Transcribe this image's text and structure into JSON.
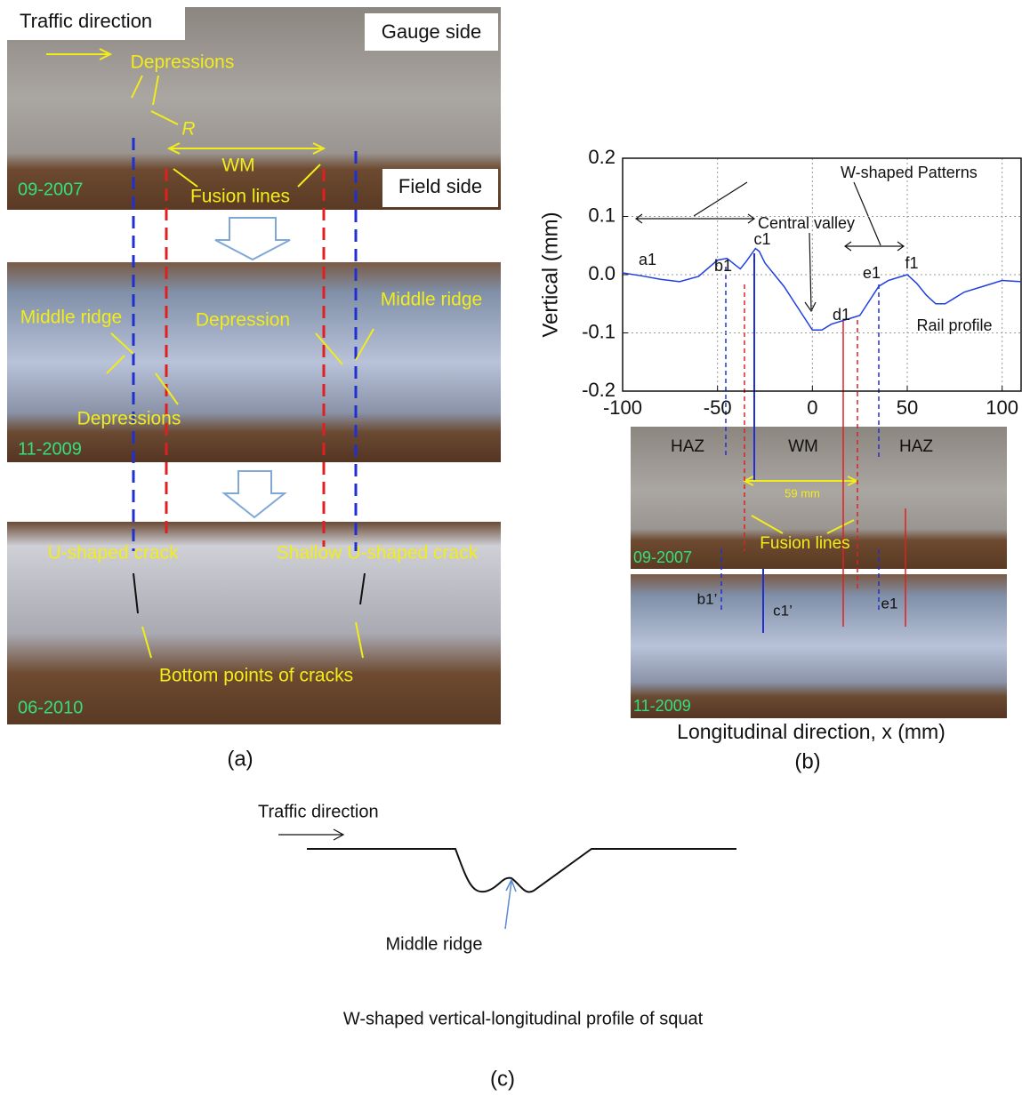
{
  "panel_a": {
    "label": "(a)",
    "photos": [
      {
        "date": "09-2007",
        "annotations": [
          "Traffic direction",
          "Gauge side",
          "Depressions",
          "R",
          "WM",
          "Fusion lines",
          "Field side"
        ]
      },
      {
        "date": "11-2009",
        "annotations": [
          "Middle ridge",
          "Depression",
          "Middle ridge",
          "Depressions"
        ]
      },
      {
        "date": "06-2010",
        "annotations": [
          "U-shaped crack",
          "Shallow U-shaped crack",
          "Bottom points of cracks"
        ]
      }
    ]
  },
  "panel_b": {
    "label": "(b)",
    "chart_data": {
      "type": "line",
      "ylabel": "Vertical (mm)",
      "xlabel": "Longitudinal direction, x (mm)",
      "xlim": [
        -100,
        110
      ],
      "ylim": [
        -0.2,
        0.2
      ],
      "xticks": [
        -100,
        -50,
        0,
        50,
        100
      ],
      "yticks": [
        -0.2,
        -0.1,
        {
          "value": 0,
          "label": "0.0"
        },
        0.1,
        0.2
      ],
      "grid": true,
      "annotations": [
        "W-shaped Patterns",
        "Central valley",
        "a1",
        "b1",
        "c1",
        "d1",
        "e1",
        "f1",
        "Rail profile"
      ],
      "series": [
        {
          "name": "Rail profile",
          "color": "#1f3fe0",
          "x": [
            -100,
            -90,
            -80,
            -70,
            -60,
            -50,
            -45,
            -40,
            -38,
            -35,
            -30,
            -28,
            -25,
            -20,
            -15,
            -10,
            -5,
            0,
            5,
            10,
            20,
            25,
            30,
            35,
            40,
            45,
            50,
            55,
            60,
            65,
            70,
            75,
            80,
            90,
            100,
            110
          ],
          "values": [
            0.003,
            -0.002,
            -0.008,
            -0.012,
            -0.003,
            0.025,
            0.028,
            0.015,
            0.01,
            0.022,
            0.045,
            0.04,
            0.02,
            0.0,
            -0.02,
            -0.045,
            -0.07,
            -0.095,
            -0.095,
            -0.085,
            -0.075,
            -0.07,
            -0.045,
            -0.02,
            -0.01,
            -0.005,
            0.0,
            -0.015,
            -0.035,
            -0.05,
            -0.05,
            -0.04,
            -0.03,
            -0.02,
            -0.01,
            -0.012
          ]
        }
      ]
    },
    "photos": [
      {
        "date": "09-2007",
        "annotations": [
          "HAZ",
          "WM",
          "HAZ",
          "59 mm",
          "Fusion lines"
        ]
      },
      {
        "date": "11-2009",
        "annotations": [
          "b1’",
          "c1’",
          "e1"
        ]
      }
    ]
  },
  "panel_c": {
    "label": "(c)",
    "annotations": [
      "Traffic direction",
      "Middle ridge"
    ],
    "caption": "W-shaped vertical-longitudinal profile of squat"
  }
}
